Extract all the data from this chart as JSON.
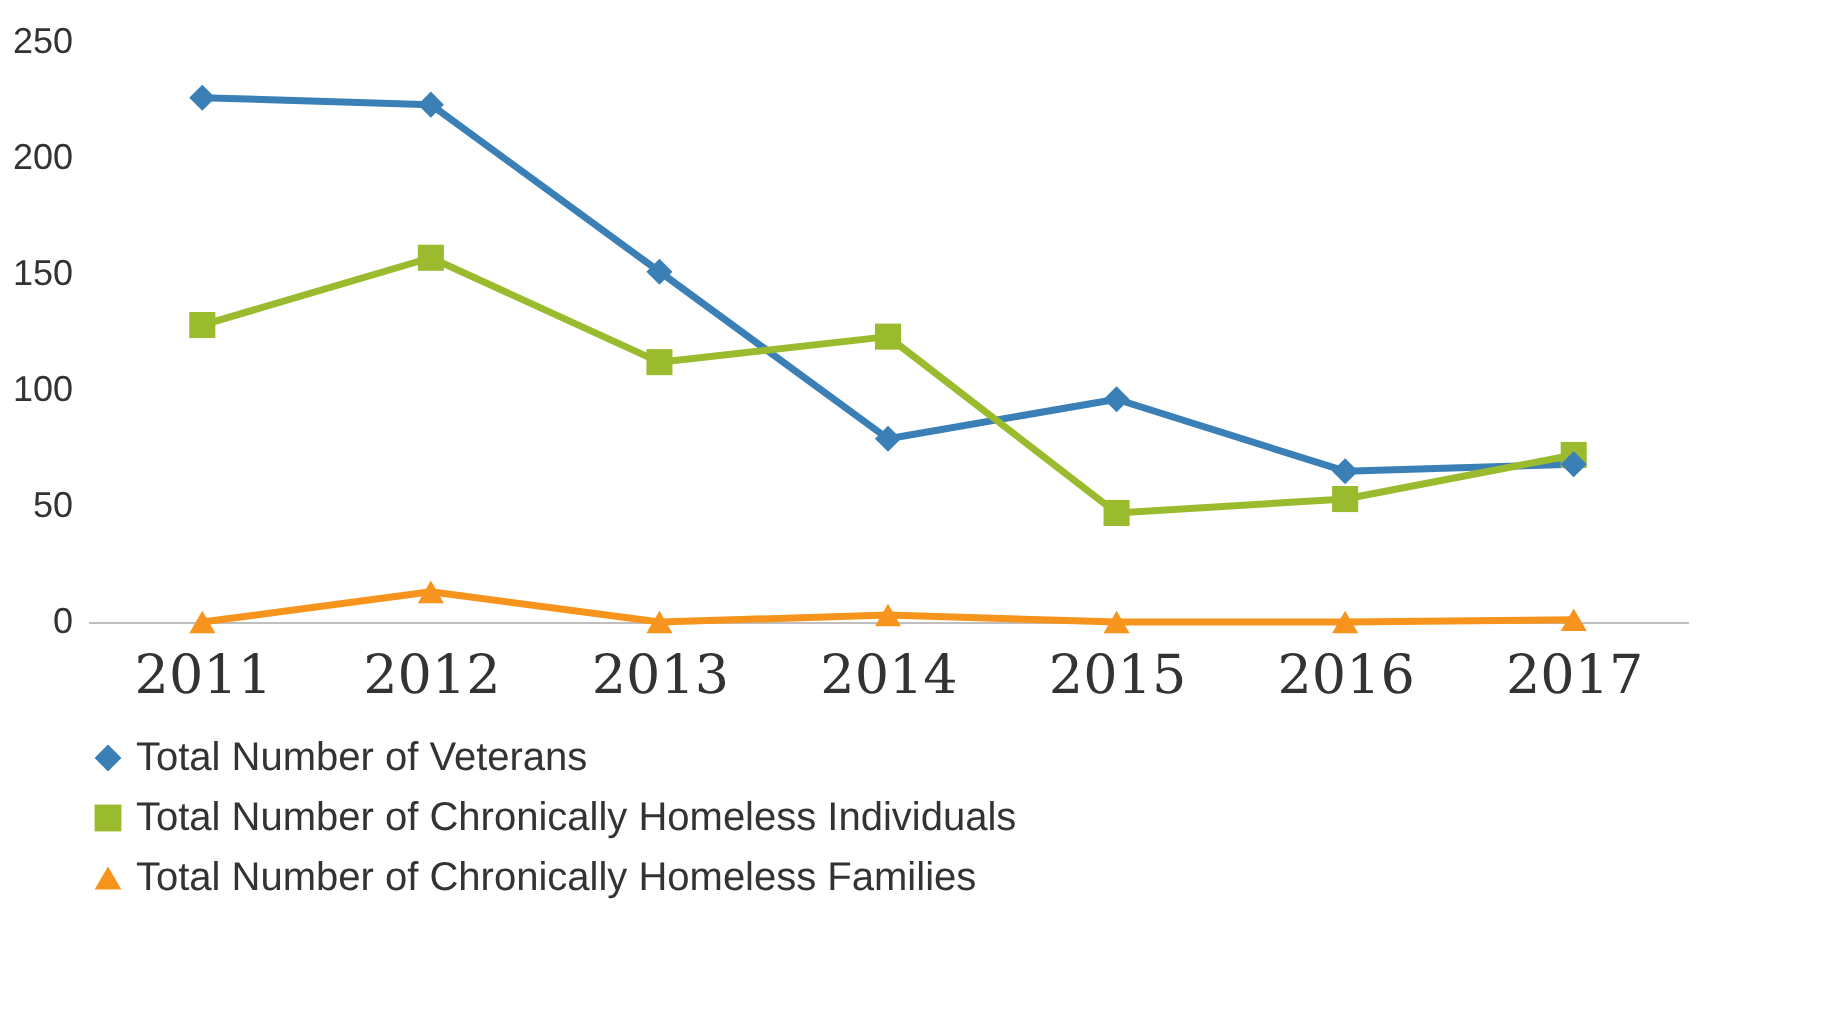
{
  "chart_data": {
    "type": "line",
    "categories": [
      "2011",
      "2012",
      "2013",
      "2014",
      "2015",
      "2016",
      "2017"
    ],
    "series": [
      {
        "name": "Total Number of Veterans",
        "color": "#3a7fb5",
        "marker": "diamond",
        "values": [
          226,
          223,
          151,
          79,
          96,
          65,
          68
        ]
      },
      {
        "name": "Total Number of Chronically Homeless Individuals",
        "color": "#9bbb2e",
        "marker": "square",
        "values": [
          128,
          157,
          112,
          123,
          47,
          53,
          72
        ]
      },
      {
        "name": "Total Number of Chronically Homeless Families",
        "color": "#f7941d",
        "marker": "triangle",
        "values": [
          0,
          13,
          0,
          3,
          0,
          0,
          1
        ]
      }
    ],
    "ylim": [
      0,
      250
    ],
    "yticks": [
      0,
      50,
      100,
      150,
      200,
      250
    ],
    "grid": false,
    "legend": "bottom",
    "line_style": "solid"
  }
}
